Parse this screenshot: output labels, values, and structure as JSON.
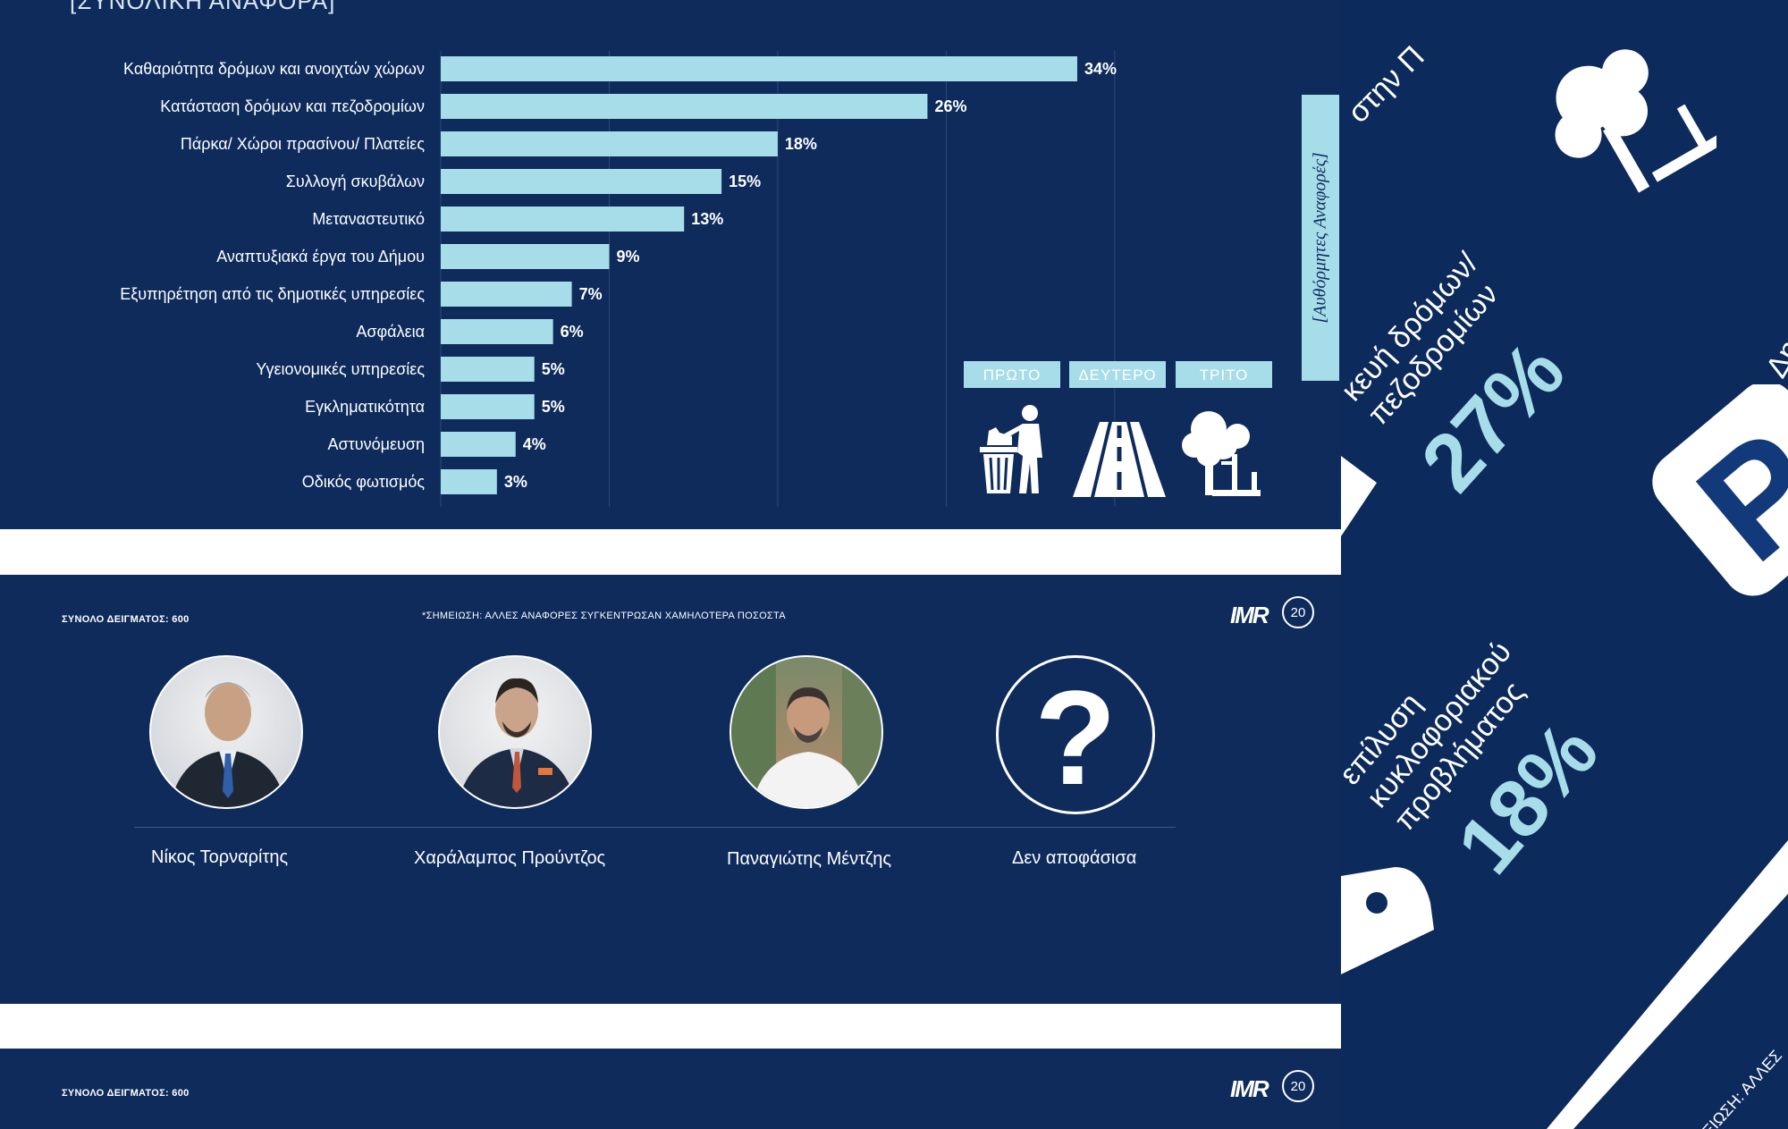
{
  "slide1": {
    "title": "[ΣΥΝΟΛΙΚΗ ΑΝΑΦΟΡΑ]",
    "rank_labels": [
      "ΠΡΩΤΟ",
      "ΔΕΥΤΕΡΟ",
      "ΤΡΙΤΟ"
    ],
    "side_tab": "[Αυθόρμητες Αναφορές]",
    "icons": [
      "trash-disposal-icon",
      "road-icon",
      "tree-bench-icon"
    ]
  },
  "chart_data": {
    "type": "bar",
    "orientation": "horizontal",
    "categories": [
      "Καθαριότητα δρόμων και ανοιχτών χώρων",
      "Κατάσταση δρόμων και πεζοδρομίων",
      "Πάρκα/ Χώροι πρασίνου/ Πλατείες",
      "Συλλογή σκυβάλων",
      "Μεταναστευτικό",
      "Αναπτυξιακά έργα του Δήμου",
      "Εξυπηρέτηση από τις δημοτικές υπηρεσίες",
      "Ασφάλεια",
      "Υγειονομικές υπηρεσίες",
      "Εγκληματικότητα",
      "Αστυνόμευση",
      "Οδικός φωτισμός"
    ],
    "values": [
      34,
      26,
      18,
      15,
      13,
      9,
      7,
      6,
      5,
      5,
      4,
      3
    ],
    "value_labels": [
      "34%",
      "26%",
      "18%",
      "15%",
      "13%",
      "9%",
      "7%",
      "6%",
      "5%",
      "5%",
      "4%",
      "3%"
    ],
    "xlim": [
      0,
      40
    ],
    "bar_color": "#a7dce9",
    "grid": true
  },
  "footer": {
    "sample_label": "ΣΥΝΟΛΟ ΔΕΙΓΜΑΤΟΣ: 600",
    "note": "*ΣΗΜΕΙΩΣΗ: ΑΛΛΕΣ ΑΝΑΦΟΡΕΣ ΣΥΓΚΕΝΤΡΩΣΑΝ ΧΑΜΗΛΟΤΕΡΑ ΠΟΣΟΣΤΑ",
    "logo_text": "IMR",
    "anniversary": "20"
  },
  "slide2": {
    "candidates": [
      {
        "name": "Νίκος Τορναρίτης"
      },
      {
        "name": "Χαράλαμπος Προύντζος"
      },
      {
        "name": "Παναγιώτης Μέντζης"
      },
      {
        "name": "Δεν αποφάσισα"
      }
    ],
    "unknown_symbol": "?"
  },
  "right_panel": {
    "top_text": "στην Π",
    "item1": "κευή δρόμων/ πεζοδρομίων",
    "pct1": "27%",
    "item2": "επίλυση κυκλοφοριακού προβλήματος",
    "pct2": "18%",
    "cut_text": "Δη",
    "parking_letter": "P",
    "bottom_note": "ΕΙΩΣΗ: ΑΛΛΕΣ"
  },
  "colors": {
    "background": "#0e2b5c",
    "bar": "#a7dce9",
    "separator": "#ffffff"
  }
}
